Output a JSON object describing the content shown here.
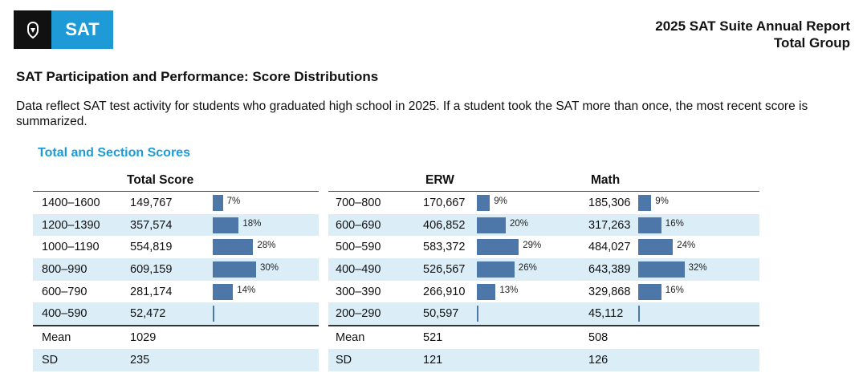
{
  "logo": {
    "text": "SAT"
  },
  "header": {
    "line1": "2025 SAT Suite Annual Report",
    "line2": "Total Group"
  },
  "section_title": "SAT Participation and Performance: Score Distributions",
  "description": "Data reflect SAT test activity for students who graduated high school in 2025. If a student took the SAT more than once, the most recent score is summarized.",
  "subsection_title": "Total and Section Scores",
  "columns": {
    "total": "Total Score",
    "erw": "ERW",
    "math": "Math"
  },
  "total_rows": [
    {
      "range": "1400–1600",
      "count": "149,767",
      "pct": 7
    },
    {
      "range": "1200–1390",
      "count": "357,574",
      "pct": 18
    },
    {
      "range": "1000–1190",
      "count": "554,819",
      "pct": 28
    },
    {
      "range": "800–990",
      "count": "609,159",
      "pct": 30
    },
    {
      "range": "600–790",
      "count": "281,174",
      "pct": 14
    },
    {
      "range": "400–590",
      "count": "52,472",
      "pct": null
    }
  ],
  "section_rows": [
    {
      "range": "700–800",
      "erw": "170,667",
      "erw_pct": 9,
      "math": "185,306",
      "math_pct": 9
    },
    {
      "range": "600–690",
      "erw": "406,852",
      "erw_pct": 20,
      "math": "317,263",
      "math_pct": 16
    },
    {
      "range": "500–590",
      "erw": "583,372",
      "erw_pct": 29,
      "math": "484,027",
      "math_pct": 24
    },
    {
      "range": "400–490",
      "erw": "526,567",
      "erw_pct": 26,
      "math": "643,389",
      "math_pct": 32
    },
    {
      "range": "300–390",
      "erw": "266,910",
      "erw_pct": 13,
      "math": "329,868",
      "math_pct": 16
    },
    {
      "range": "200–290",
      "erw": "50,597",
      "erw_pct": null,
      "math": "45,112",
      "math_pct": null
    }
  ],
  "stats": {
    "mean_label": "Mean",
    "sd_label": "SD",
    "total_mean": "1029",
    "total_sd": "235",
    "erw_mean": "521",
    "erw_sd": "121",
    "math_mean": "508",
    "math_sd": "126"
  },
  "colors": {
    "bar": "#4e77a9",
    "shade": "#dbeef8",
    "accent": "#1e9bd7"
  }
}
